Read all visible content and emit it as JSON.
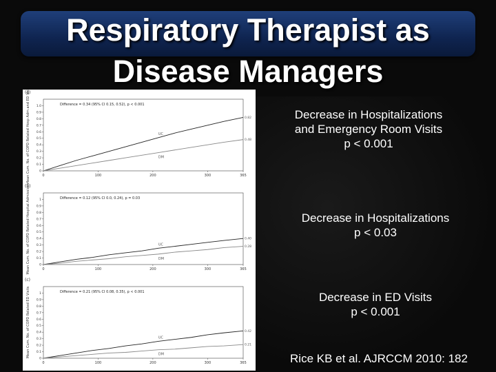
{
  "slide": {
    "title": "Respiratory Therapist as\nDisease Managers",
    "captions": [
      "Decrease in Hospitalizations\nand Emergency Room Visits\np < 0.001",
      "Decrease in Hospitalizations\np < 0.03",
      "Decrease in ED Visits\np < 0.001"
    ],
    "citation": "Rice KB et al. AJRCCM 2010: 182"
  },
  "chart_data": [
    {
      "type": "line",
      "panel": "(a)",
      "ylabel": "Mean Cum. No. of COPD Related Hosp Adm and ED Visits",
      "annotation": "Difference = 0.34 (95% CI 0.15, 0.52), p < 0.001",
      "xlim": [
        0,
        365
      ],
      "ylim": [
        0,
        1.1
      ],
      "x_ticks": [
        "0",
        "100",
        "200",
        "300",
        "365"
      ],
      "y_ticks": [
        "0",
        "0.1",
        "0.2",
        "0.3",
        "0.4",
        "0.5",
        "0.6",
        "0.7",
        "0.8",
        "0.9",
        "1.0"
      ],
      "series": [
        {
          "name": "UC",
          "end_label": "0.82",
          "x": [
            0,
            30,
            60,
            90,
            120,
            150,
            180,
            210,
            240,
            270,
            300,
            330,
            365
          ],
          "y": [
            0,
            0.08,
            0.16,
            0.23,
            0.3,
            0.37,
            0.44,
            0.51,
            0.58,
            0.64,
            0.7,
            0.76,
            0.82
          ]
        },
        {
          "name": "DM",
          "end_label": "0.48",
          "x": [
            0,
            30,
            60,
            90,
            120,
            150,
            180,
            210,
            240,
            270,
            300,
            330,
            365
          ],
          "y": [
            0,
            0.04,
            0.08,
            0.12,
            0.16,
            0.2,
            0.24,
            0.28,
            0.32,
            0.36,
            0.4,
            0.44,
            0.48
          ]
        }
      ]
    },
    {
      "type": "line",
      "panel": "(b)",
      "ylabel": "Mean Cum. No. of COPD Related Hospital Admissions",
      "annotation": "Difference = 0.12 (95% CI 0.0, 0.24), p = 0.03",
      "xlim": [
        0,
        365
      ],
      "ylim": [
        0,
        1.1
      ],
      "x_ticks": [
        "0",
        "100",
        "200",
        "300",
        "365"
      ],
      "y_ticks": [
        "0",
        "0.1",
        "0.2",
        "0.3",
        "0.4",
        "0.5",
        "0.6",
        "0.7",
        "0.8",
        "0.9",
        "1"
      ],
      "series": [
        {
          "name": "UC",
          "end_label": "0.40",
          "x": [
            0,
            30,
            60,
            90,
            120,
            150,
            180,
            210,
            240,
            270,
            300,
            330,
            365
          ],
          "y": [
            0,
            0.04,
            0.08,
            0.11,
            0.15,
            0.18,
            0.21,
            0.25,
            0.28,
            0.31,
            0.34,
            0.37,
            0.4
          ]
        },
        {
          "name": "DM",
          "end_label": "0.28",
          "x": [
            0,
            30,
            60,
            90,
            120,
            150,
            180,
            210,
            240,
            270,
            300,
            330,
            365
          ],
          "y": [
            0,
            0.02,
            0.05,
            0.07,
            0.09,
            0.12,
            0.14,
            0.16,
            0.19,
            0.21,
            0.23,
            0.26,
            0.28
          ]
        }
      ]
    },
    {
      "type": "line",
      "panel": "(c)",
      "ylabel": "Mean Cum. No. of COPD Related ED Visits",
      "annotation": "Difference = 0.21 (95% CI 0.08, 0.35), p < 0.001",
      "xlim": [
        0,
        365
      ],
      "ylim": [
        0,
        1.1
      ],
      "x_ticks": [
        "0",
        "100",
        "200",
        "300",
        "365"
      ],
      "y_ticks": [
        "0",
        "0.1",
        "0.2",
        "0.3",
        "0.4",
        "0.5",
        "0.6",
        "0.7",
        "0.8",
        "0.9",
        "1"
      ],
      "series": [
        {
          "name": "UC",
          "end_label": "0.42",
          "x": [
            0,
            30,
            60,
            90,
            120,
            150,
            180,
            210,
            240,
            270,
            300,
            330,
            365
          ],
          "y": [
            0,
            0.04,
            0.08,
            0.12,
            0.15,
            0.19,
            0.22,
            0.26,
            0.29,
            0.32,
            0.36,
            0.39,
            0.42
          ]
        },
        {
          "name": "DM",
          "end_label": "0.21",
          "x": [
            0,
            30,
            60,
            90,
            120,
            150,
            180,
            210,
            240,
            270,
            300,
            330,
            365
          ],
          "y": [
            0,
            0.02,
            0.04,
            0.06,
            0.08,
            0.09,
            0.11,
            0.13,
            0.14,
            0.16,
            0.18,
            0.19,
            0.21
          ]
        }
      ]
    }
  ]
}
